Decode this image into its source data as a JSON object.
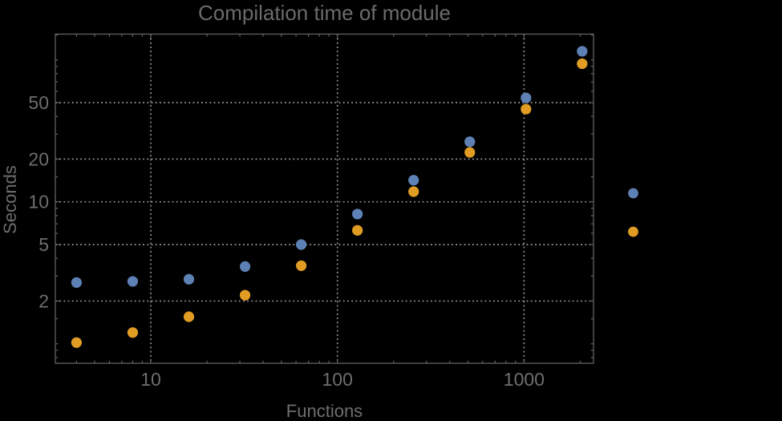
{
  "window": {
    "background": "#000000"
  },
  "chart_data": {
    "type": "scatter",
    "title": "Compilation time of module",
    "xlabel": "Functions",
    "ylabel": "Seconds",
    "x_scale": "log",
    "y_scale": "log",
    "xlim": [
      3.08,
      2356
    ],
    "ylim": [
      0.729,
      152
    ],
    "x_ticks": [
      10,
      100,
      1000
    ],
    "x_minor_ticks": [
      4,
      5,
      6,
      7,
      8,
      9,
      20,
      30,
      40,
      50,
      60,
      70,
      80,
      90,
      200,
      300,
      400,
      500,
      600,
      700,
      800,
      900,
      2000
    ],
    "y_ticks": [
      2,
      5,
      10,
      20,
      50
    ],
    "y_minor_ticks": [
      0.8,
      0.9,
      1,
      1.5,
      3,
      4,
      6,
      7,
      8,
      9,
      15,
      30,
      40,
      60,
      70,
      80,
      90,
      100,
      150
    ],
    "grid": {
      "style": "dotted",
      "at": "major-ticks",
      "color": "#999999"
    },
    "series": [
      {
        "name": "series-1-blue",
        "color": "#5e81b5",
        "marker": "filled-circle",
        "x": [
          4,
          8,
          16,
          32,
          64,
          128,
          256,
          512,
          1024,
          2048
        ],
        "y": [
          2.7,
          2.75,
          2.85,
          3.5,
          5.0,
          8.2,
          14.2,
          26.5,
          54,
          115
        ]
      },
      {
        "name": "series-2-orange",
        "color": "#e19c24",
        "marker": "filled-circle",
        "x": [
          4,
          8,
          16,
          32,
          64,
          128,
          256,
          512,
          1024,
          2048
        ],
        "y": [
          1.02,
          1.2,
          1.55,
          2.2,
          3.55,
          6.3,
          11.8,
          22.3,
          45,
          94
        ]
      }
    ],
    "legend": {
      "position": "outside-right",
      "entries": [
        {
          "series": "series-1-blue",
          "color": "#5e81b5",
          "label": ""
        },
        {
          "series": "series-2-orange",
          "color": "#e19c24",
          "label": ""
        }
      ]
    }
  },
  "style": {
    "background": "#000000",
    "frame_color": "#616161",
    "grid_color": "#999999",
    "tick_color": "#616161",
    "tick_label_color": "#6e6e6e",
    "title_color": "#6b6b6b",
    "axis_label_color": "#6e6e6e"
  }
}
